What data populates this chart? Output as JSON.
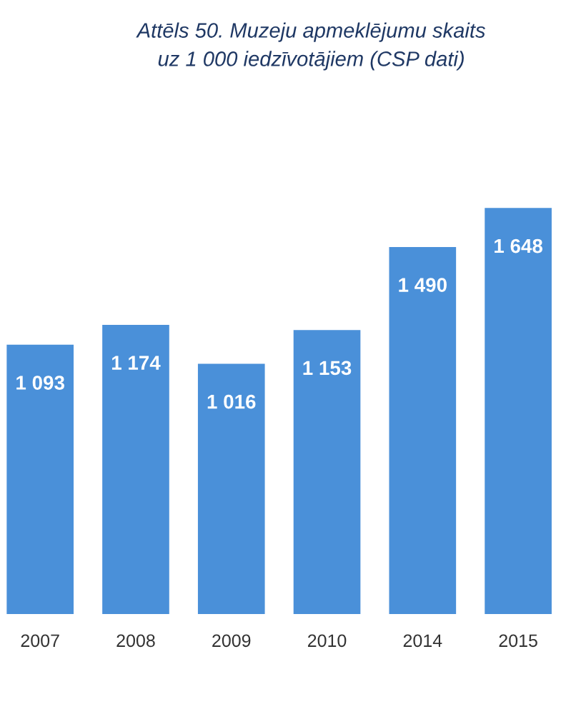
{
  "chart_data": {
    "type": "bar",
    "title": "Attēls 50. Muzeju apmeklējumu skaits\nuz 1 000 iedzīvotājiem (CSP dati)",
    "categories": [
      "2007",
      "2008",
      "2009",
      "2010",
      "2014",
      "2015"
    ],
    "values": [
      1093,
      1174,
      1016,
      1153,
      1490,
      1648
    ],
    "value_labels": [
      "1 093",
      "1 174",
      "1 016",
      "1 153",
      "1 490",
      "1 648"
    ],
    "color": "#4a90d9",
    "tick_labels": "x",
    "grid": false,
    "legend": false
  }
}
